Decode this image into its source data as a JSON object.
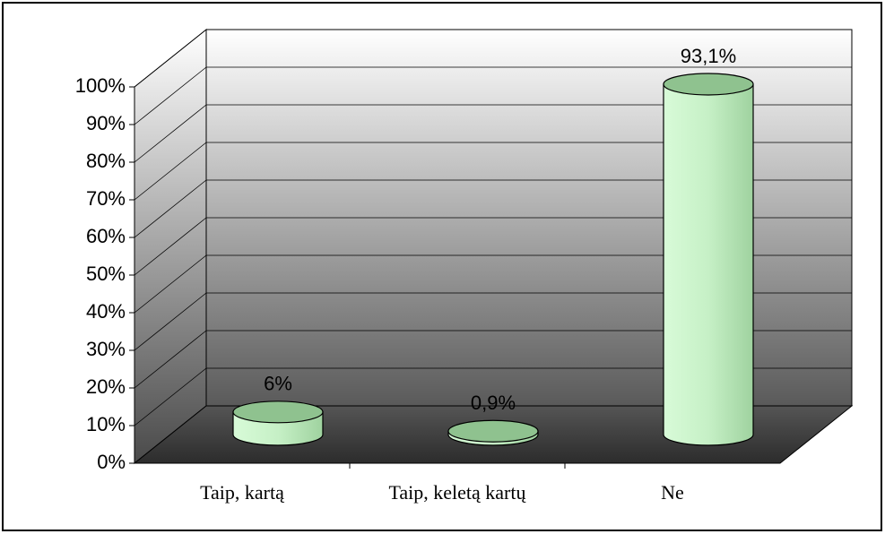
{
  "chart_data": {
    "type": "bar",
    "categories": [
      "Taip, kartą",
      "Taip, keletą kartų",
      "Ne"
    ],
    "values": [
      6,
      0.9,
      93.1
    ],
    "value_labels": [
      "6%",
      "0,9%",
      "93,1%"
    ],
    "color": "#c6f5c6",
    "ylim": [
      0,
      100
    ],
    "yticks": [
      {
        "value": 0,
        "label": "0%"
      },
      {
        "value": 10,
        "label": "10%"
      },
      {
        "value": 20,
        "label": "20%"
      },
      {
        "value": 30,
        "label": "30%"
      },
      {
        "value": 40,
        "label": "40%"
      },
      {
        "value": 50,
        "label": "50%"
      },
      {
        "value": 60,
        "label": "60%"
      },
      {
        "value": 70,
        "label": "70%"
      },
      {
        "value": 80,
        "label": "80%"
      },
      {
        "value": 90,
        "label": "90%"
      },
      {
        "value": 100,
        "label": "100%"
      }
    ],
    "grid": true
  }
}
